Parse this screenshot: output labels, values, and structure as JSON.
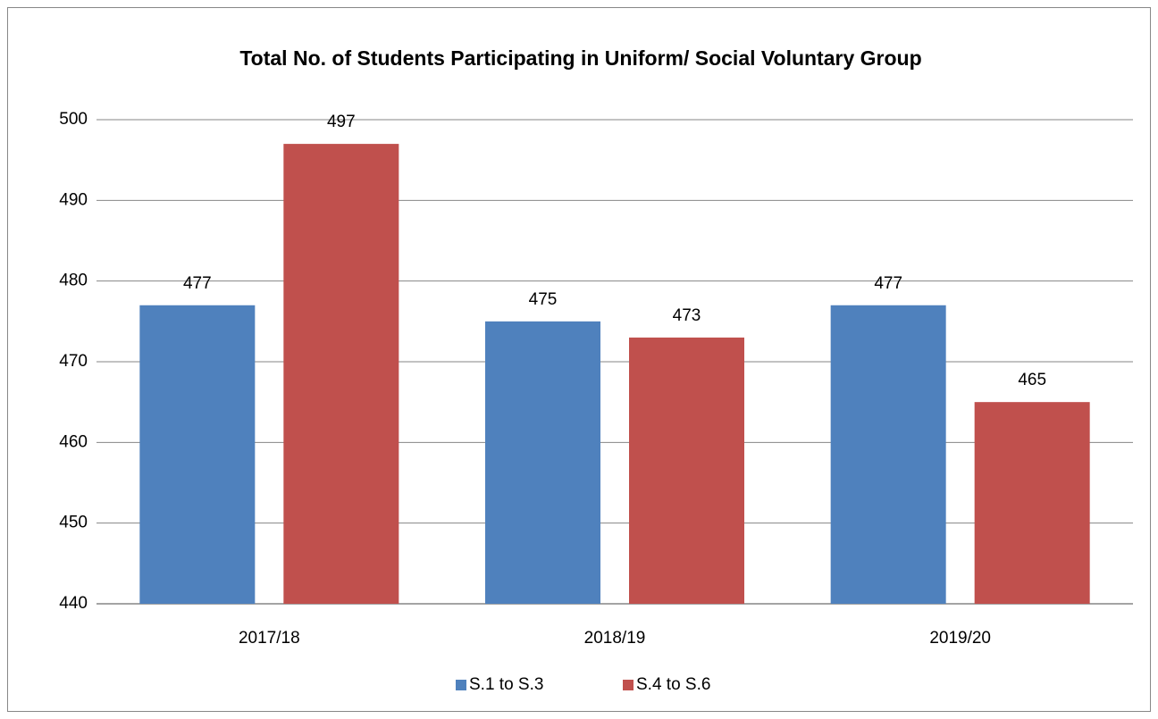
{
  "chart_data": {
    "type": "bar",
    "title": "Total No. of Students Participating in Uniform/ Social Voluntary Group",
    "categories": [
      "2017/18",
      "2018/19",
      "2019/20"
    ],
    "series": [
      {
        "name": "S.1 to S.3",
        "color": "#4f81bd",
        "values": [
          477,
          475,
          477
        ]
      },
      {
        "name": "S.4 to S.6",
        "color": "#c0504d",
        "values": [
          497,
          473,
          465
        ]
      }
    ],
    "ylim": [
      440,
      500
    ],
    "yticks": [
      440,
      450,
      460,
      470,
      480,
      490,
      500
    ],
    "grid": true,
    "legend": "bottom"
  }
}
